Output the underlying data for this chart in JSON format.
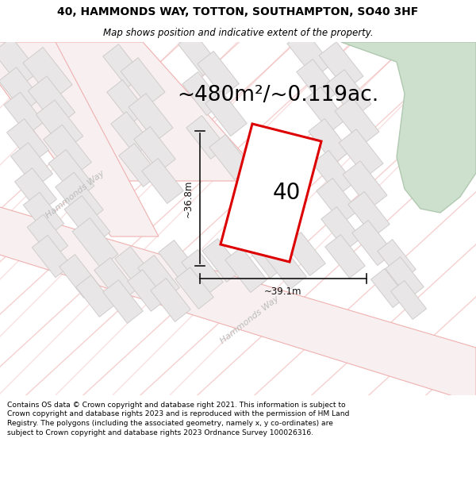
{
  "title_line1": "40, HAMMONDS WAY, TOTTON, SOUTHAMPTON, SO40 3HF",
  "title_line2": "Map shows position and indicative extent of the property.",
  "area_label": "~480m²/~0.119ac.",
  "house_number": "40",
  "dim_width": "~39.1m",
  "dim_height": "~36.8m",
  "street_label_left": "Hammonds Way",
  "street_label_bottom": "Hammonds Way",
  "footer_text": "Contains OS data © Crown copyright and database right 2021. This information is subject to Crown copyright and database rights 2023 and is reproduced with the permission of HM Land Registry. The polygons (including the associated geometry, namely x, y co-ordinates) are subject to Crown copyright and database rights 2023 Ordnance Survey 100026316.",
  "map_bg": "#ffffff",
  "road_line_color": "#f0b0b0",
  "road_fill_color": "#f8f0f0",
  "building_fill": "#e8e6e6",
  "building_stroke": "#d0cccc",
  "prop_fill": "#ffffff",
  "prop_stroke": "#dd0000",
  "green_fill": "#cde0cd",
  "green_stroke": "#b0c8b0",
  "dim_color": "#111111",
  "street_color": "#bbbbbb",
  "text_color": "#000000",
  "footer_bg": "#ffffff",
  "title_bg": "#ffffff"
}
